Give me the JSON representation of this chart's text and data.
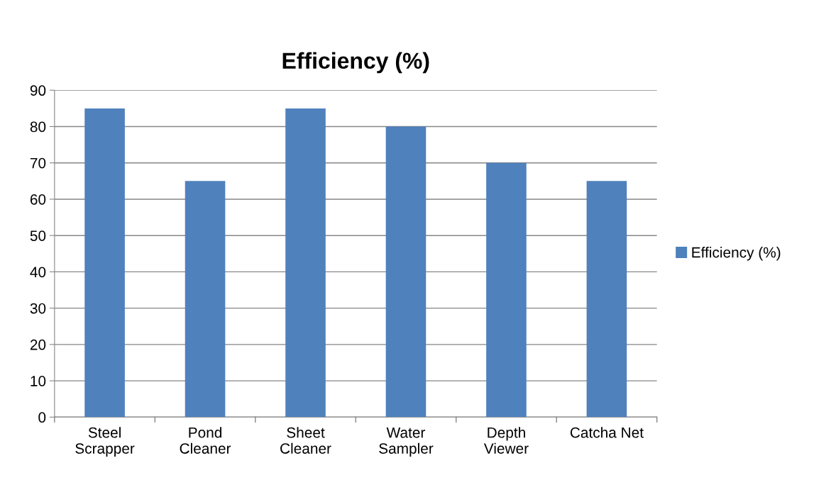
{
  "chart_data": {
    "type": "bar",
    "title": "Efficiency (%)",
    "categories": [
      "Steel\nScrapper",
      "Pond\nCleaner",
      "Sheet\nCleaner",
      "Water\nSampler",
      "Depth\nViewer",
      "Catcha Net"
    ],
    "series": [
      {
        "name": "Efficiency (%)",
        "color": "#4f81bd",
        "values": [
          85,
          65,
          85,
          80,
          70,
          65
        ]
      }
    ],
    "ylim": [
      0,
      90
    ],
    "yticks": [
      0,
      10,
      20,
      30,
      40,
      50,
      60,
      70,
      80,
      90
    ],
    "grid": "y",
    "legend": "right"
  }
}
